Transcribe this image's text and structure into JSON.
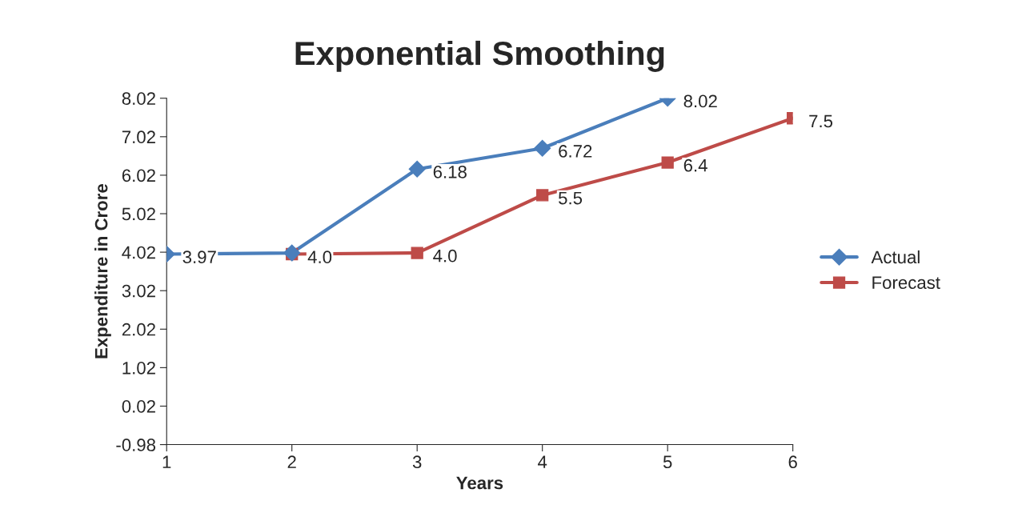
{
  "chart_data": {
    "type": "line",
    "title": "Exponential Smoothing",
    "xlabel": "Years",
    "ylabel": "Expenditure in Crore",
    "x": [
      1,
      2,
      3,
      4,
      5,
      6
    ],
    "xlim": [
      1,
      6
    ],
    "xticks": [
      1,
      2,
      3,
      4,
      5,
      6
    ],
    "ylim": [
      -0.98,
      8.02
    ],
    "yticks": [
      -0.98,
      0.02,
      1.02,
      2.02,
      3.02,
      4.02,
      5.02,
      6.02,
      7.02,
      8.02
    ],
    "series": [
      {
        "name": "Actual",
        "color": "#4a7ebb",
        "marker": "diamond",
        "values": [
          3.97,
          4.0,
          6.18,
          6.72,
          8.02,
          null
        ],
        "value_labels": [
          "3.97",
          null,
          "6.18",
          "6.72",
          "8.02",
          null
        ]
      },
      {
        "name": "Forecast",
        "color": "#be4b48",
        "marker": "square",
        "values": [
          null,
          3.97,
          4.0,
          5.5,
          6.35,
          7.5
        ],
        "value_labels": [
          null,
          "4.0",
          "4.0",
          "5.5",
          "6.4",
          "7.5"
        ]
      }
    ],
    "grid": false,
    "legend": "right",
    "line_style": "solid"
  }
}
